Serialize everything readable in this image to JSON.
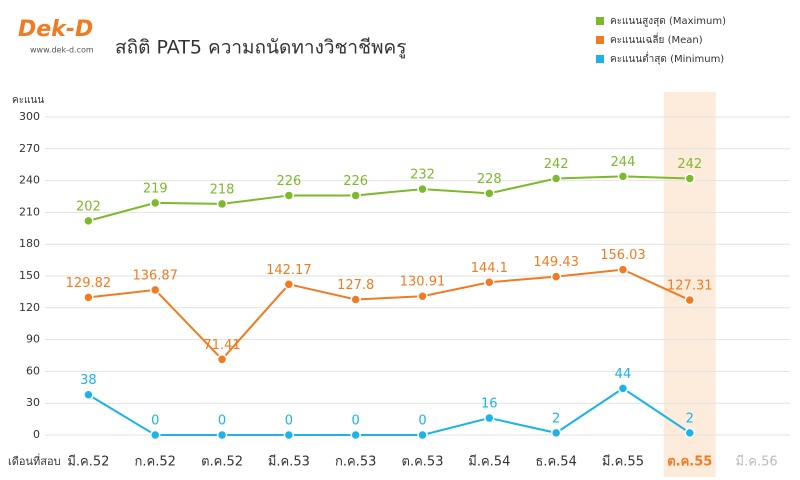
{
  "logo": {
    "name": "Dek-D",
    "url": "www.dek-d.com"
  },
  "chart_data": {
    "type": "line",
    "title": "สถิติ PAT5 ความถนัดทางวิชาชีพครู",
    "y_label": "คะแนน",
    "x_label": "เดือนที่สอบ",
    "categories": [
      "มี.ค.52",
      "ก.ค.52",
      "ต.ค.52",
      "มี.ค.53",
      "ก.ค.53",
      "ต.ค.53",
      "มี.ค.54",
      "ธ.ค.54",
      "มี.ค.55",
      "ต.ค.55",
      "มี.ค.56"
    ],
    "series": [
      {
        "name": "คะแนนสูงสุด (Maximum)",
        "color": "#7cba2c",
        "values": [
          202,
          219,
          218,
          226,
          226,
          232,
          228,
          242,
          244,
          242,
          null
        ]
      },
      {
        "name": "คะแนนเฉลี่ย (Mean)",
        "color": "#f07b22",
        "values": [
          129.82,
          136.87,
          71.41,
          142.17,
          127.8,
          130.91,
          144.1,
          149.43,
          156.03,
          127.31,
          null
        ]
      },
      {
        "name": "คะแนนต่ำสุด (Minimum)",
        "color": "#1bb3e8",
        "values": [
          38,
          0,
          0,
          0,
          0,
          0,
          16,
          2,
          44,
          2,
          null
        ]
      }
    ],
    "ylim": [
      0,
      300
    ],
    "yticks": [
      0,
      30,
      60,
      90,
      120,
      150,
      180,
      210,
      240,
      270,
      300
    ],
    "grid": true,
    "legend": "top-right",
    "highlight": "ต.ค.55"
  }
}
